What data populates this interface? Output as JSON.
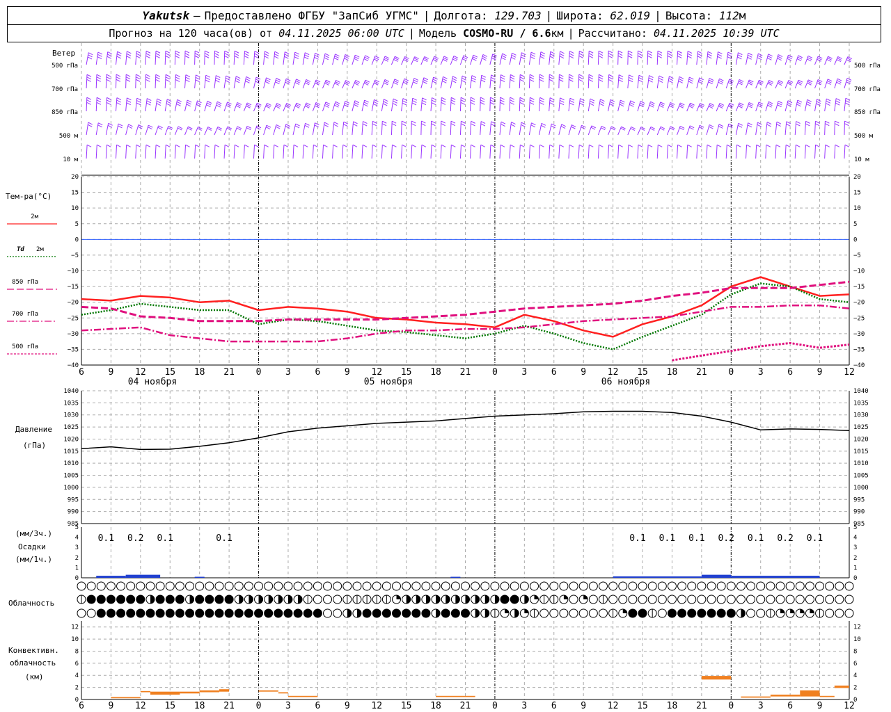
{
  "header": {
    "location": "Yakutsk",
    "dash": "–",
    "provider": "Предоставлено ФГБУ \"ЗапСиб УГМС\"",
    "lon_label": "Долгота:",
    "lon_value": "129.703",
    "lat_label": "Широта:",
    "lat_value": "62.019",
    "alt_label": "Высота:",
    "alt_value": "112",
    "alt_unit": "м",
    "forecast_label": "Прогноз на 120 часа(ов) от",
    "forecast_start": "04.11.2025 06:00 UTC",
    "model_label": "Модель",
    "model_name": "COSMO-RU / 6.6",
    "model_unit": "км",
    "computed_label": "Рассчитано:",
    "computed_value": "04.11.2025 10:39 UTC"
  },
  "wind_panel": {
    "title": "Ветер",
    "levels": [
      "500 гПа",
      "700 гПа",
      "850 гПа",
      "500 м",
      "10 м"
    ]
  },
  "temp_panel": {
    "title": "Тем-ра(°C)",
    "legend": [
      {
        "label": "2м",
        "color": "#ff2020",
        "style": "solid"
      },
      {
        "label_it": "Td",
        "label": "2м",
        "color": "#007700",
        "style": "dotted"
      },
      {
        "label": "850 гПа",
        "color": "#e0107e",
        "style": "dash"
      },
      {
        "label": "700 гПа",
        "color": "#e0107e",
        "style": "dashdot"
      },
      {
        "label": "500 гПа",
        "color": "#e0107e",
        "style": "dot"
      }
    ]
  },
  "pressure_panel": {
    "title1": "Давление",
    "title2": "(гПа)"
  },
  "precip_panel": {
    "title1": "(мм/3ч.)",
    "title2": "Осадки",
    "title3": "(мм/1ч.)"
  },
  "cloud_panel": {
    "title": "Облачность"
  },
  "conv_panel": {
    "title1": "Конвективн.",
    "title2": "облачность",
    "title3": "(км)"
  },
  "x_ticks": [
    "6",
    "9",
    "12",
    "15",
    "18",
    "21",
    "0",
    "3",
    "6",
    "9",
    "12",
    "15",
    "18",
    "21",
    "0",
    "3",
    "6",
    "9",
    "12",
    "15",
    "18",
    "21",
    "0",
    "3",
    "6",
    "9",
    "12"
  ],
  "day_labels": [
    "04 ноября",
    "05 ноября",
    "06 ноября"
  ],
  "colors": {
    "wind": "#9933ff",
    "precip": "#2040d0",
    "conv": "#f08020",
    "zero": "#3060ff"
  },
  "chart_data": [
    {
      "type": "line",
      "title": "Тем-ра(°C)",
      "x_hours": [
        0,
        3,
        6,
        9,
        12,
        15,
        18,
        21,
        24,
        27,
        30,
        33,
        36,
        39,
        42,
        45,
        48,
        51,
        54,
        57,
        60,
        63,
        66,
        69,
        72,
        75,
        78
      ],
      "ylim": [
        -40,
        20
      ],
      "yticks": [
        20,
        15,
        10,
        5,
        0,
        -5,
        -10,
        -15,
        -20,
        -25,
        -30,
        -35,
        -40
      ],
      "series": [
        {
          "name": "2м",
          "values": [
            -19,
            -19.5,
            -18,
            -18.5,
            -20,
            -19.5,
            -22.5,
            -21.5,
            -22,
            -23,
            -25,
            -25.5,
            -26.5,
            -27,
            -28,
            -24,
            -26,
            -29,
            -31,
            -27,
            -24.5,
            -21,
            -15,
            -12,
            -15,
            -18,
            -17.5
          ]
        },
        {
          "name": "Td 2м",
          "values": [
            -24,
            -22.5,
            -20.5,
            -21.5,
            -22.5,
            -22.5,
            -27,
            -25.5,
            -26,
            -27.5,
            -29,
            -29.5,
            -30.5,
            -31.5,
            -30,
            -27.5,
            -30,
            -33,
            -35,
            -31,
            -27.5,
            -24,
            -17.5,
            -14,
            -15,
            -19,
            -20
          ]
        },
        {
          "name": "850 гПа",
          "values": [
            -21.5,
            -22,
            -24.5,
            -25,
            -26,
            -26,
            -26,
            -25.5,
            -25.5,
            -25.5,
            -25.5,
            -25,
            -24.5,
            -24,
            -23,
            -22,
            -21.5,
            -21,
            -20.5,
            -19.5,
            -18,
            -17,
            -15.5,
            -15.5,
            -15.5,
            -14.5,
            -13.5
          ]
        },
        {
          "name": "700 гПа",
          "values": [
            -29,
            -28.5,
            -28,
            -30.5,
            -31.5,
            -32.5,
            -32.5,
            -32.5,
            -32.5,
            -31.5,
            -30,
            -29,
            -29,
            -28.5,
            -28.5,
            -28,
            -27,
            -26,
            -25.5,
            -25,
            -24.5,
            -23,
            -21.5,
            -21.5,
            -21,
            -21,
            -22
          ]
        },
        {
          "name": "500 гПа",
          "values": [
            null,
            null,
            null,
            null,
            null,
            null,
            null,
            null,
            null,
            null,
            null,
            null,
            null,
            null,
            null,
            null,
            null,
            null,
            null,
            null,
            -38.5,
            -37,
            -35.5,
            -34,
            -33,
            -34.5,
            -33.5
          ]
        }
      ]
    },
    {
      "type": "line",
      "title": "Давление (гПа)",
      "x_hours": [
        0,
        3,
        6,
        9,
        12,
        15,
        18,
        21,
        24,
        27,
        30,
        33,
        36,
        39,
        42,
        45,
        48,
        51,
        54,
        57,
        60,
        63,
        66,
        69,
        72,
        75,
        78
      ],
      "ylim": [
        985,
        1040
      ],
      "yticks": [
        1040,
        1035,
        1030,
        1025,
        1020,
        1015,
        1010,
        1005,
        1000,
        995,
        990,
        985
      ],
      "series": [
        {
          "name": "Давление",
          "values": [
            1016,
            1016.8,
            1015.7,
            1015.8,
            1017,
            1018.5,
            1020.5,
            1023,
            1024.5,
            1025.5,
            1026.5,
            1027,
            1027.5,
            1028.5,
            1029.5,
            1030,
            1030.5,
            1031.3,
            1031.5,
            1031.5,
            1031,
            1029.5,
            1027,
            1023.8,
            1024.2,
            1024,
            1023.5
          ]
        }
      ]
    },
    {
      "type": "bar",
      "title": "Осадки",
      "ylim": [
        0,
        5
      ],
      "yticks": [
        5,
        4,
        3,
        2,
        1,
        0
      ],
      "labels_3h": [
        {
          "hour": 3,
          "value": "0.1"
        },
        {
          "hour": 6,
          "value": "0.2"
        },
        {
          "hour": 9,
          "value": "0.1"
        },
        {
          "hour": 15,
          "value": "0.1"
        },
        {
          "hour": 57,
          "value": "0.1"
        },
        {
          "hour": 60,
          "value": "0.1"
        },
        {
          "hour": 63,
          "value": "0.1"
        },
        {
          "hour": 66,
          "value": "0.2"
        },
        {
          "hour": 69,
          "value": "0.1"
        },
        {
          "hour": 72,
          "value": "0.2"
        },
        {
          "hour": 75,
          "value": "0.1"
        }
      ],
      "hourly_mm": [
        0,
        0,
        0.05,
        0.05,
        0.1,
        0.1,
        0.15,
        0.2,
        0.2,
        0.15,
        0.1,
        0.1,
        0.05,
        0,
        0,
        0,
        0.05,
        0,
        0,
        0,
        0,
        0,
        0,
        0,
        0,
        0,
        0,
        0,
        0,
        0,
        0,
        0,
        0,
        0,
        0,
        0,
        0,
        0,
        0,
        0,
        0,
        0,
        0,
        0,
        0,
        0,
        0,
        0,
        0,
        0,
        0,
        0,
        0,
        0,
        0,
        0,
        0,
        0,
        0,
        0,
        0,
        0,
        0,
        0,
        0,
        0,
        0,
        0,
        0,
        0,
        0,
        0,
        0,
        0,
        0,
        0,
        0,
        0,
        0,
        0,
        0,
        0,
        0,
        0,
        0,
        0,
        0,
        0,
        0,
        0,
        0,
        0,
        0,
        0,
        0,
        0,
        0,
        0,
        0,
        0,
        0,
        0,
        0,
        0,
        0,
        0,
        0,
        0,
        0,
        0,
        0,
        0,
        0,
        0,
        0,
        0,
        0,
        0,
        0,
        0,
        0,
        0,
        0,
        0,
        0,
        0,
        0,
        0,
        0,
        0,
        0,
        0,
        0,
        0,
        0,
        0,
        0,
        0,
        0,
        0,
        0,
        0,
        0,
        0,
        0,
        0,
        0,
        0,
        0,
        0,
        0,
        0,
        0,
        0,
        0,
        0,
        0,
        0,
        0,
        0
      ]
    },
    {
      "type": "bar",
      "title": "Конвективн. облачность (км)",
      "ylim": [
        0,
        13
      ],
      "yticks": [
        12,
        10,
        8,
        6,
        4,
        2,
        0
      ],
      "segments": [
        {
          "from_h": 3,
          "to_h": 6,
          "base": 0.2,
          "top": 0.4
        },
        {
          "from_h": 6,
          "to_h": 7,
          "base": 1.2,
          "top": 1.4
        },
        {
          "from_h": 7,
          "to_h": 10,
          "base": 0.8,
          "top": 1.3
        },
        {
          "from_h": 10,
          "to_h": 12,
          "base": 1.0,
          "top": 1.3
        },
        {
          "from_h": 12,
          "to_h": 14,
          "base": 1.2,
          "top": 1.5
        },
        {
          "from_h": 14,
          "to_h": 15,
          "base": 1.3,
          "top": 1.7
        },
        {
          "from_h": 18,
          "to_h": 20,
          "base": 1.3,
          "top": 1.5
        },
        {
          "from_h": 20,
          "to_h": 21,
          "base": 1.0,
          "top": 1.2
        },
        {
          "from_h": 21,
          "to_h": 24,
          "base": 0.4,
          "top": 0.6
        },
        {
          "from_h": 36,
          "to_h": 40,
          "base": 0.4,
          "top": 0.6
        },
        {
          "from_h": 63,
          "to_h": 66,
          "base": 3.3,
          "top": 3.9
        },
        {
          "from_h": 67,
          "to_h": 70,
          "base": 0.3,
          "top": 0.5
        },
        {
          "from_h": 70,
          "to_h": 73,
          "base": 0.5,
          "top": 0.8
        },
        {
          "from_h": 73,
          "to_h": 75,
          "base": 0.5,
          "top": 1.5
        },
        {
          "from_h": 75,
          "to_h": 76.5,
          "base": 0.4,
          "top": 0.6
        },
        {
          "from_h": 76.5,
          "to_h": 78,
          "base": 1.9,
          "top": 2.3
        }
      ]
    }
  ],
  "cloud_rows": {
    "row1": "00000000000000000000000000000000000000000000000000000000000000000000000000000000000000000000000000000000004111111111100000000000",
    "row2": "14444443444344443333333100011111233333333334432112020100000000000000000000000000001000044444413334444444444444444440",
    "row3": "00444444444444444444444440033444444434443312321000000012441044444443001222210000000000000000444444444444444444444444"
  }
}
